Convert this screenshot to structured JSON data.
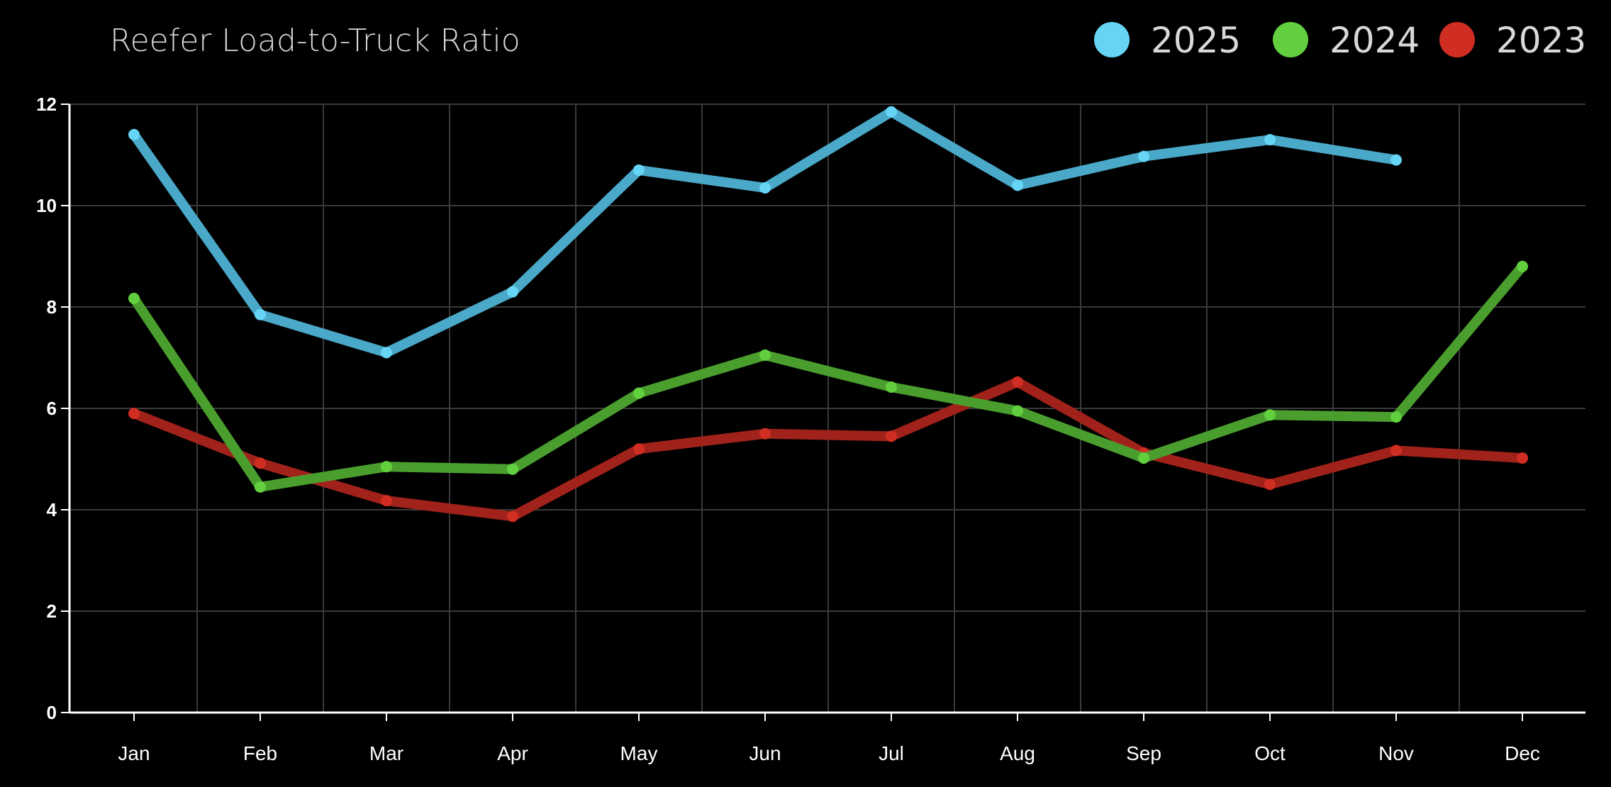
{
  "chart_data": {
    "type": "line",
    "title": "Reefer Load-to-Truck Ratio",
    "xlabel": "",
    "ylabel": "",
    "categories": [
      "Jan",
      "Feb",
      "Mar",
      "Apr",
      "May",
      "Jun",
      "Jul",
      "Aug",
      "Sep",
      "Oct",
      "Nov",
      "Dec"
    ],
    "ylim": [
      0,
      12
    ],
    "yticks": [
      0,
      2,
      4,
      6,
      8,
      10,
      12
    ],
    "grid": true,
    "legend_position": "top-right",
    "series": [
      {
        "name": "2025",
        "color": "#4aa8c8",
        "marker_color": "#66d4f5",
        "legend_color": "#66d4f5",
        "values": [
          11.4,
          7.85,
          7.1,
          8.3,
          10.7,
          10.35,
          11.85,
          10.4,
          10.97,
          11.3,
          10.9,
          null
        ]
      },
      {
        "name": "2024",
        "color": "#4a9e2e",
        "marker_color": "#62cf3e",
        "legend_color": "#62cf3e",
        "values": [
          8.17,
          4.45,
          4.85,
          4.8,
          6.3,
          7.05,
          6.42,
          5.95,
          5.02,
          5.87,
          5.83,
          8.8
        ]
      },
      {
        "name": "2023",
        "color": "#a0221a",
        "marker_color": "#d02e22",
        "legend_color": "#d02e22",
        "values": [
          5.9,
          4.92,
          4.18,
          3.87,
          5.2,
          5.5,
          5.45,
          6.52,
          5.12,
          4.5,
          5.17,
          5.02
        ]
      }
    ]
  }
}
